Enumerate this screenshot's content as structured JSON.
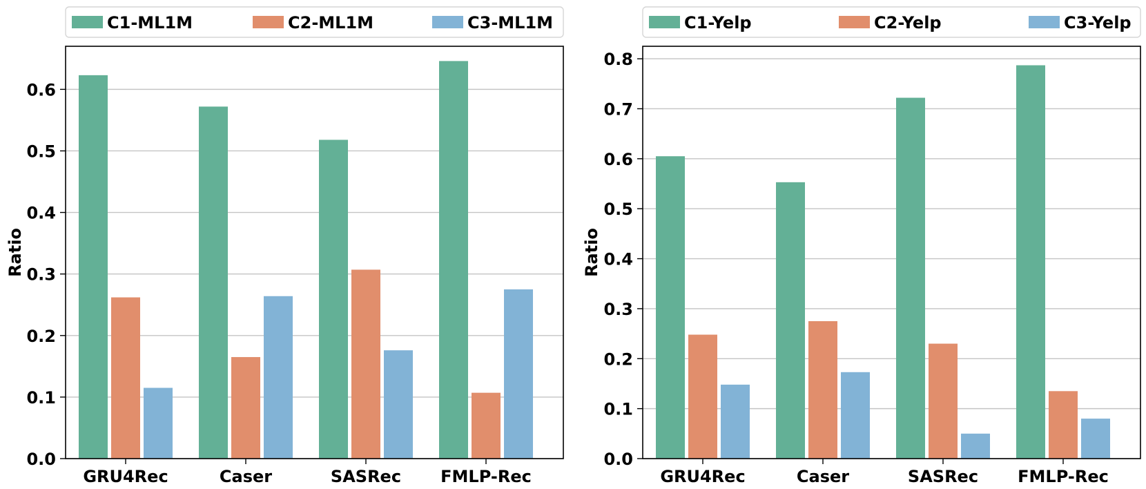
{
  "chart_data": [
    {
      "type": "bar",
      "categories": [
        "GRU4Rec",
        "Caser",
        "SASRec",
        "FMLP-Rec"
      ],
      "series": [
        {
          "name": "C1-ML1M",
          "color": "#63B096",
          "values": [
            0.623,
            0.572,
            0.518,
            0.646
          ]
        },
        {
          "name": "C2-ML1M",
          "color": "#E18E6C",
          "values": [
            0.262,
            0.165,
            0.307,
            0.107
          ]
        },
        {
          "name": "C3-ML1M",
          "color": "#82B3D6",
          "values": [
            0.115,
            0.264,
            0.176,
            0.275
          ]
        }
      ],
      "ylabel": "Ratio",
      "ylim": [
        0,
        0.67
      ],
      "yticks": [
        0.0,
        0.1,
        0.2,
        0.3,
        0.4,
        0.5,
        0.6
      ],
      "ytick_labels": [
        "0.0",
        "0.1",
        "0.2",
        "0.3",
        "0.4",
        "0.5",
        "0.6"
      ],
      "grid": "y",
      "legend_position": "top"
    },
    {
      "type": "bar",
      "categories": [
        "GRU4Rec",
        "Caser",
        "SASRec",
        "FMLP-Rec"
      ],
      "series": [
        {
          "name": "C1-Yelp",
          "color": "#63B096",
          "values": [
            0.605,
            0.553,
            0.722,
            0.787
          ]
        },
        {
          "name": "C2-Yelp",
          "color": "#E18E6C",
          "values": [
            0.248,
            0.275,
            0.23,
            0.135
          ]
        },
        {
          "name": "C3-Yelp",
          "color": "#82B3D6",
          "values": [
            0.148,
            0.173,
            0.05,
            0.08
          ]
        }
      ],
      "ylabel": "Ratio",
      "ylim": [
        0,
        0.825
      ],
      "yticks": [
        0.0,
        0.1,
        0.2,
        0.3,
        0.4,
        0.5,
        0.6,
        0.7,
        0.8
      ],
      "ytick_labels": [
        "0.0",
        "0.1",
        "0.2",
        "0.3",
        "0.4",
        "0.5",
        "0.6",
        "0.7",
        "0.8"
      ],
      "grid": "y",
      "legend_position": "top"
    }
  ]
}
